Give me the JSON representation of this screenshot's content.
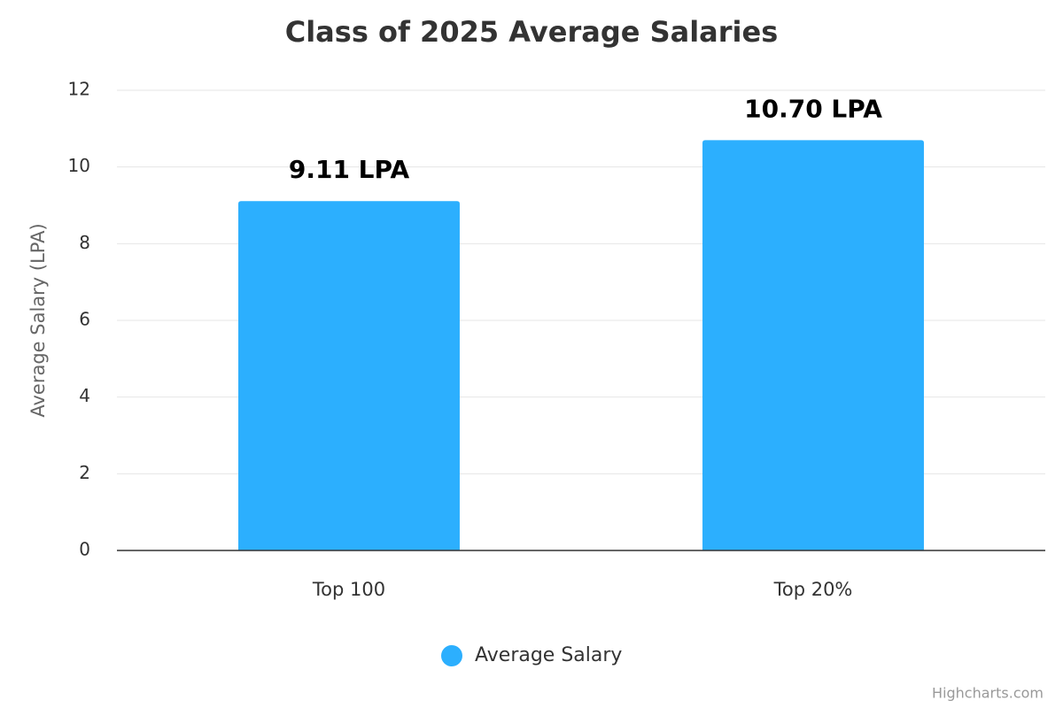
{
  "chart_data": {
    "type": "bar",
    "title": "Class of 2025 Average Salaries",
    "y_axis_title": "Average Salary (LPA)",
    "categories": [
      "Top 100",
      "Top 20%"
    ],
    "series": [
      {
        "name": "Average Salary",
        "color": "#2caffe",
        "values": [
          9.11,
          10.7
        ],
        "value_labels": [
          "9.11 LPA",
          "10.70 LPA"
        ]
      }
    ],
    "ylim": [
      0,
      12
    ],
    "yticks": [
      0,
      2,
      4,
      6,
      8,
      10,
      12
    ],
    "grid": true,
    "legend": "bottom",
    "credits": "Highcharts.com"
  }
}
